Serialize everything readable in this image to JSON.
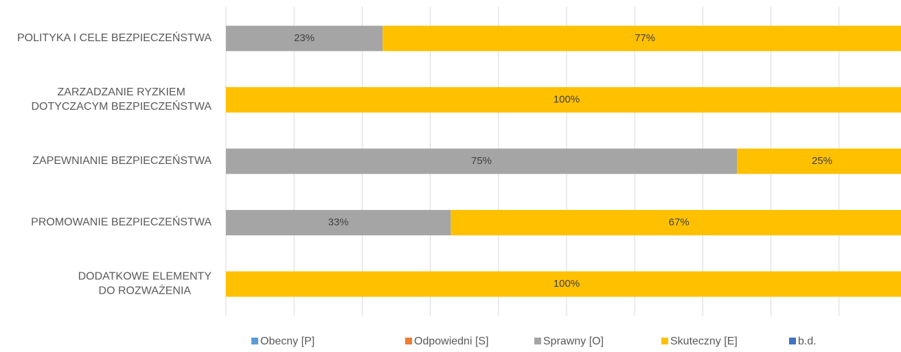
{
  "chart_data": {
    "type": "stacked-bar-horizontal",
    "categories": [
      "POLITYKA I CELE BEZPIECZEŃSTWA",
      "ZARZADZANIE RYZKIEM\nDOTYCZACYM BEZPIECZEŃSTWA",
      "ZAPEWNIANIE BEZPIECZEŃSTWA",
      "PROMOWANIE BEZPIECZEŃSTWA",
      "DODATKOWE ELEMENTY\nDO ROZWAŻENIA"
    ],
    "series": [
      {
        "name": "Obecny [P]",
        "color": "#5b9bd5",
        "values": [
          0,
          0,
          0,
          0,
          0
        ]
      },
      {
        "name": "Odpowiedni [S]",
        "color": "#ed7d31",
        "values": [
          0,
          0,
          0,
          0,
          0
        ]
      },
      {
        "name": "Sprawny [O]",
        "color": "#a5a5a5",
        "values": [
          23,
          0,
          75,
          33,
          0
        ],
        "value_labels": [
          "23%",
          null,
          "75%",
          "33%",
          null
        ]
      },
      {
        "name": "Skuteczny [E]",
        "color": "#ffc000",
        "values": [
          77,
          100,
          25,
          67,
          100
        ],
        "value_labels": [
          "77%",
          "100%",
          "25%",
          "67%",
          "100%"
        ]
      },
      {
        "name": "b.d.",
        "color": "#4472c4",
        "values": [
          0,
          0,
          0,
          0,
          0
        ]
      }
    ],
    "xlim": [
      0,
      100
    ],
    "xticks": [
      0,
      10,
      20,
      30,
      40,
      50,
      60,
      70,
      80,
      90,
      100
    ],
    "grid": true,
    "legend": "bottom"
  }
}
